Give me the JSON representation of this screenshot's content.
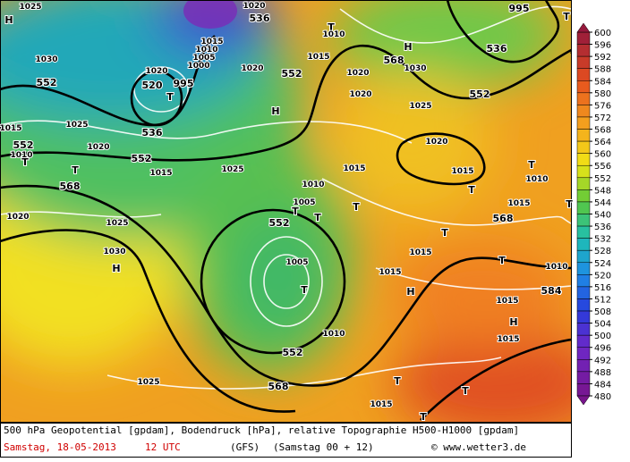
{
  "map": {
    "labels": [
      "552",
      "1030",
      "1025",
      "1015",
      "552",
      "1010",
      "T",
      "1020",
      "T",
      "552",
      "1015",
      "568",
      "1020",
      "1025",
      "1030",
      "H",
      "1025",
      "520",
      "T",
      "536",
      "995",
      "1020",
      "1015",
      "1010",
      "1005",
      "1000",
      "1020",
      "552",
      "536",
      "1020",
      "T",
      "1010",
      "1015",
      "H",
      "1025",
      "1020",
      "568",
      "1030",
      "H",
      "536",
      "995",
      "T",
      "552",
      "1020",
      "1025",
      "1020",
      "1015",
      "1010",
      "T",
      "T",
      "1015",
      "1010",
      "1005",
      "T",
      "552",
      "T",
      "T",
      "1015",
      "568",
      "T",
      "T",
      "1015",
      "1010",
      "T",
      "1005",
      "T",
      "1015",
      "H",
      "1015",
      "584",
      "H",
      "1015",
      "1010",
      "552",
      "568",
      "T",
      "T",
      "1015",
      "T",
      "H",
      "1025"
    ],
    "legend": {
      "ticks": [
        600,
        596,
        592,
        588,
        584,
        580,
        576,
        572,
        568,
        564,
        560,
        556,
        552,
        548,
        544,
        540,
        536,
        532,
        528,
        524,
        520,
        516,
        512,
        508,
        504,
        500,
        496,
        492,
        488,
        484,
        480
      ]
    }
  },
  "footer": {
    "description": "500 hPa Geopotential [gpdam], Bodendruck [hPa], relative Topographie H500-H1000 [gpdam]",
    "date": "Samstag, 18-05-2013",
    "time": "12 UTC",
    "model": "(GFS)",
    "run": "(Samstag 00 + 12)",
    "credit": "© www.wetter3.de"
  }
}
